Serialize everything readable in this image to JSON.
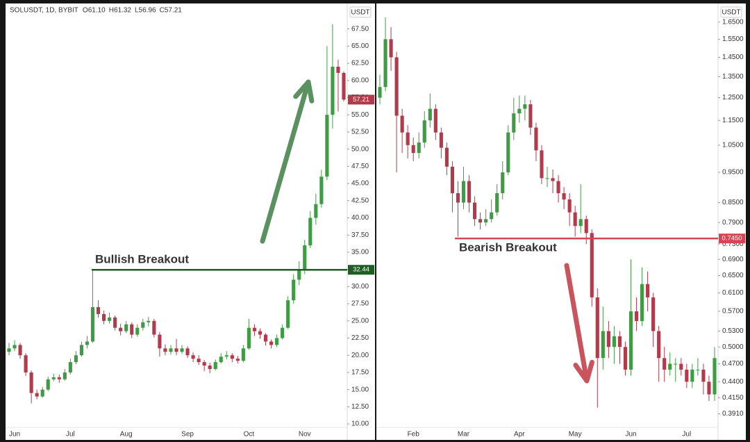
{
  "chart_data": [
    {
      "type": "candlestick",
      "title": "SOLUSDT, 1D, BYBIT",
      "legend_values": [
        "O61.10",
        "H61.32",
        "L56.96",
        "C57.21"
      ],
      "currency": "USDT",
      "log_scale": false,
      "up_color": "#3f9c45",
      "down_color": "#b23b4b",
      "categories": [
        null,
        "Jun",
        null,
        null,
        null,
        null,
        null,
        null,
        null,
        null,
        null,
        "Jul",
        null,
        null,
        null,
        null,
        null,
        null,
        null,
        null,
        null,
        "Aug",
        null,
        null,
        null,
        null,
        null,
        null,
        null,
        null,
        null,
        null,
        "Sep",
        null,
        null,
        null,
        null,
        null,
        null,
        null,
        null,
        null,
        null,
        "Oct",
        null,
        null,
        null,
        null,
        null,
        null,
        null,
        null,
        null,
        "Nov",
        null,
        null,
        null,
        null,
        null,
        null,
        null
      ],
      "open": [
        20.5,
        21.0,
        21.5,
        20.0,
        17.5,
        14.5,
        14.0,
        15.0,
        16.5,
        16.8,
        16.5,
        17.5,
        19.0,
        20.0,
        21.5,
        22.0,
        27.0,
        26.0,
        25.0,
        25.5,
        24.0,
        23.5,
        24.5,
        23.0,
        24.0,
        24.8,
        25.0,
        23.0,
        21.0,
        20.5,
        21.0,
        20.5,
        21.0,
        20.0,
        19.5,
        19.0,
        18.5,
        18.0,
        19.0,
        19.8,
        20.0,
        19.5,
        19.2,
        21.0,
        24.0,
        23.5,
        23.0,
        22.0,
        21.5,
        22.5,
        24.0,
        28.0,
        31.0,
        32.5,
        36.0,
        40.0,
        42.0,
        46.0,
        55.0,
        62.0,
        61.1
      ],
      "high": [
        21.8,
        22.2,
        21.8,
        20.3,
        17.8,
        15.0,
        15.4,
        16.9,
        17.3,
        17.2,
        18.0,
        19.5,
        20.6,
        22.0,
        22.8,
        32.44,
        28.0,
        26.5,
        26.2,
        25.8,
        24.6,
        25.0,
        24.8,
        24.5,
        25.3,
        25.6,
        25.3,
        23.4,
        21.6,
        21.5,
        22.4,
        21.5,
        21.3,
        20.4,
        20.0,
        19.3,
        18.9,
        19.4,
        20.3,
        20.6,
        20.3,
        19.9,
        21.5,
        25.3,
        24.5,
        23.9,
        23.2,
        22.3,
        23.0,
        24.5,
        28.6,
        31.8,
        33.7,
        36.8,
        41.0,
        43.5,
        47.0,
        65.0,
        68.2,
        63.0,
        61.32
      ],
      "low": [
        20.0,
        20.6,
        19.5,
        17.0,
        13.0,
        13.6,
        13.8,
        14.8,
        16.2,
        16.0,
        16.3,
        17.2,
        18.7,
        19.8,
        21.0,
        21.8,
        25.5,
        24.5,
        24.6,
        23.6,
        22.9,
        23.2,
        22.5,
        22.7,
        23.6,
        24.2,
        22.6,
        19.8,
        20.0,
        20.1,
        20.0,
        20.2,
        19.6,
        19.0,
        18.6,
        17.7,
        17.4,
        17.8,
        18.8,
        19.4,
        19.0,
        18.8,
        19.0,
        20.8,
        22.8,
        22.4,
        21.4,
        21.0,
        21.2,
        22.3,
        23.8,
        27.5,
        30.2,
        31.8,
        35.6,
        39.0,
        41.5,
        45.5,
        53.0,
        55.5,
        56.96
      ],
      "close": [
        21.0,
        21.5,
        20.0,
        17.5,
        14.5,
        14.0,
        15.0,
        16.5,
        16.8,
        16.5,
        17.5,
        19.0,
        20.0,
        21.5,
        22.0,
        27.0,
        26.0,
        25.0,
        25.5,
        24.0,
        23.5,
        24.5,
        23.0,
        24.0,
        24.8,
        25.0,
        23.0,
        21.0,
        20.5,
        21.0,
        20.5,
        21.0,
        20.0,
        19.5,
        19.0,
        18.5,
        18.0,
        19.0,
        19.8,
        20.0,
        19.5,
        19.2,
        21.0,
        24.0,
        23.5,
        23.0,
        22.0,
        21.5,
        22.5,
        24.0,
        28.0,
        31.0,
        32.5,
        36.0,
        40.0,
        42.0,
        46.0,
        55.0,
        62.0,
        61.1,
        57.21
      ],
      "ylim": [
        9.5,
        70.7
      ],
      "yticks": [
        {
          "value": 10,
          "label": "10.00"
        },
        {
          "value": 12.5,
          "label": "12.50"
        },
        {
          "value": 15,
          "label": "15.00"
        },
        {
          "value": 17.5,
          "label": "17.50"
        },
        {
          "value": 20,
          "label": "20.00"
        },
        {
          "value": 22.5,
          "label": "22.50"
        },
        {
          "value": 25,
          "label": "25.00"
        },
        {
          "value": 27.5,
          "label": "27.50"
        },
        {
          "value": 30,
          "label": "30.00"
        },
        {
          "value": 32.5,
          "label": "32.50"
        },
        {
          "value": 35,
          "label": "35.00"
        },
        {
          "value": 37.5,
          "label": "37.50"
        },
        {
          "value": 40,
          "label": "40.00"
        },
        {
          "value": 42.5,
          "label": "42.50"
        },
        {
          "value": 45,
          "label": "45.00"
        },
        {
          "value": 47.5,
          "label": "47.50"
        },
        {
          "value": 50,
          "label": "50.00"
        },
        {
          "value": 52.5,
          "label": "52.50"
        },
        {
          "value": 55,
          "label": "55.00"
        },
        {
          "value": 57.5,
          "label": "57.50"
        },
        {
          "value": 60,
          "label": "60.00"
        },
        {
          "value": 62.5,
          "label": "62.50"
        },
        {
          "value": 65,
          "label": "65.00"
        },
        {
          "value": 67.5,
          "label": "67.50"
        }
      ],
      "show_last_price": true,
      "levels": [
        {
          "value": 32.44,
          "color": "#1f5e22",
          "annotation": "Bullish Breakout"
        }
      ]
    },
    {
      "type": "candlestick",
      "currency": "USDT",
      "log_scale": true,
      "up_color": "#3f9c45",
      "down_color": "#b23b4b",
      "categories": [
        null,
        null,
        null,
        null,
        null,
        null,
        "Feb",
        null,
        null,
        null,
        null,
        null,
        null,
        null,
        null,
        "Mar",
        null,
        null,
        null,
        null,
        null,
        null,
        null,
        null,
        null,
        "Apr",
        null,
        null,
        null,
        null,
        null,
        null,
        null,
        null,
        null,
        "May",
        null,
        null,
        null,
        null,
        null,
        null,
        null,
        null,
        null,
        "Jun",
        null,
        null,
        null,
        null,
        null,
        null,
        null,
        null,
        null,
        "Jul",
        null,
        null,
        null,
        null,
        null
      ],
      "open": [
        1.25,
        1.3,
        1.55,
        1.45,
        1.17,
        1.1,
        1.05,
        1.02,
        1.06,
        1.15,
        1.2,
        1.1,
        1.04,
        0.97,
        0.88,
        0.85,
        0.92,
        0.85,
        0.8,
        0.79,
        0.8,
        0.82,
        0.88,
        0.95,
        1.1,
        1.18,
        1.2,
        1.22,
        1.12,
        1.03,
        0.93,
        0.93,
        0.92,
        0.88,
        0.86,
        0.82,
        0.78,
        0.8,
        0.76,
        0.6,
        0.48,
        0.53,
        0.5,
        0.52,
        0.5,
        0.46,
        0.57,
        0.55,
        0.63,
        0.6,
        0.53,
        0.48,
        0.46,
        0.47,
        0.47,
        0.46,
        0.44,
        0.46,
        0.46,
        0.44,
        0.42
      ],
      "high": [
        1.36,
        1.68,
        1.62,
        1.48,
        1.2,
        1.13,
        1.08,
        1.1,
        1.19,
        1.27,
        1.22,
        1.12,
        1.06,
        0.99,
        0.92,
        0.97,
        0.94,
        0.87,
        0.82,
        0.83,
        0.86,
        0.91,
        0.99,
        1.13,
        1.25,
        1.26,
        1.26,
        1.24,
        1.14,
        1.05,
        0.97,
        0.96,
        0.94,
        0.9,
        0.88,
        0.84,
        0.91,
        0.81,
        0.77,
        0.62,
        0.58,
        0.55,
        0.54,
        0.53,
        0.51,
        0.69,
        0.6,
        0.67,
        0.66,
        0.61,
        0.54,
        0.5,
        0.49,
        0.48,
        0.48,
        0.47,
        0.47,
        0.48,
        0.47,
        0.45,
        0.5
      ],
      "low": [
        1.22,
        1.28,
        1.38,
        0.95,
        1.02,
        1.0,
        0.99,
        1.0,
        1.04,
        1.12,
        1.07,
        1.0,
        0.94,
        0.82,
        0.75,
        0.83,
        0.82,
        0.78,
        0.77,
        0.78,
        0.79,
        0.81,
        0.86,
        0.94,
        1.07,
        1.14,
        1.15,
        1.09,
        0.99,
        0.91,
        0.9,
        0.88,
        0.85,
        0.83,
        0.78,
        0.75,
        0.76,
        0.73,
        0.58,
        0.4,
        0.46,
        0.48,
        0.47,
        0.47,
        0.45,
        0.45,
        0.53,
        0.54,
        0.57,
        0.5,
        0.44,
        0.44,
        0.45,
        0.44,
        0.45,
        0.43,
        0.43,
        0.45,
        0.42,
        0.41,
        0.41
      ],
      "close": [
        1.3,
        1.55,
        1.45,
        1.17,
        1.1,
        1.05,
        1.02,
        1.06,
        1.15,
        1.2,
        1.1,
        1.04,
        0.97,
        0.88,
        0.85,
        0.92,
        0.85,
        0.8,
        0.79,
        0.8,
        0.82,
        0.88,
        0.95,
        1.1,
        1.18,
        1.2,
        1.22,
        1.12,
        1.03,
        0.93,
        0.93,
        0.92,
        0.88,
        0.86,
        0.82,
        0.78,
        0.8,
        0.76,
        0.6,
        0.48,
        0.53,
        0.5,
        0.52,
        0.5,
        0.46,
        0.57,
        0.55,
        0.63,
        0.6,
        0.53,
        0.48,
        0.46,
        0.47,
        0.47,
        0.46,
        0.44,
        0.46,
        0.46,
        0.44,
        0.42,
        0.48
      ],
      "ylim": [
        0.372,
        1.745
      ],
      "yticks": [
        {
          "value": 0.391,
          "label": "0.3910"
        },
        {
          "value": 0.415,
          "label": "0.4150"
        },
        {
          "value": 0.44,
          "label": "0.4400"
        },
        {
          "value": 0.47,
          "label": "0.4700"
        },
        {
          "value": 0.5,
          "label": "0.5000"
        },
        {
          "value": 0.53,
          "label": "0.5300"
        },
        {
          "value": 0.57,
          "label": "0.5700"
        },
        {
          "value": 0.61,
          "label": "0.6100"
        },
        {
          "value": 0.65,
          "label": "0.6500"
        },
        {
          "value": 0.69,
          "label": "0.6900"
        },
        {
          "value": 0.73,
          "label": "0.7300"
        },
        {
          "value": 0.79,
          "label": "0.7900"
        },
        {
          "value": 0.85,
          "label": "0.8500"
        },
        {
          "value": 0.95,
          "label": "0.9500"
        },
        {
          "value": 1.05,
          "label": "1.0500"
        },
        {
          "value": 1.15,
          "label": "1.1500"
        },
        {
          "value": 1.25,
          "label": "1.2500"
        },
        {
          "value": 1.35,
          "label": "1.3500"
        },
        {
          "value": 1.45,
          "label": "1.4500"
        },
        {
          "value": 1.55,
          "label": "1.5500"
        },
        {
          "value": 1.65,
          "label": "1.6500"
        }
      ],
      "show_last_price": false,
      "levels": [
        {
          "value": 0.745,
          "value_label": "0.7450",
          "color": "#d64553",
          "annotation": "Bearish Breakout"
        }
      ]
    }
  ]
}
